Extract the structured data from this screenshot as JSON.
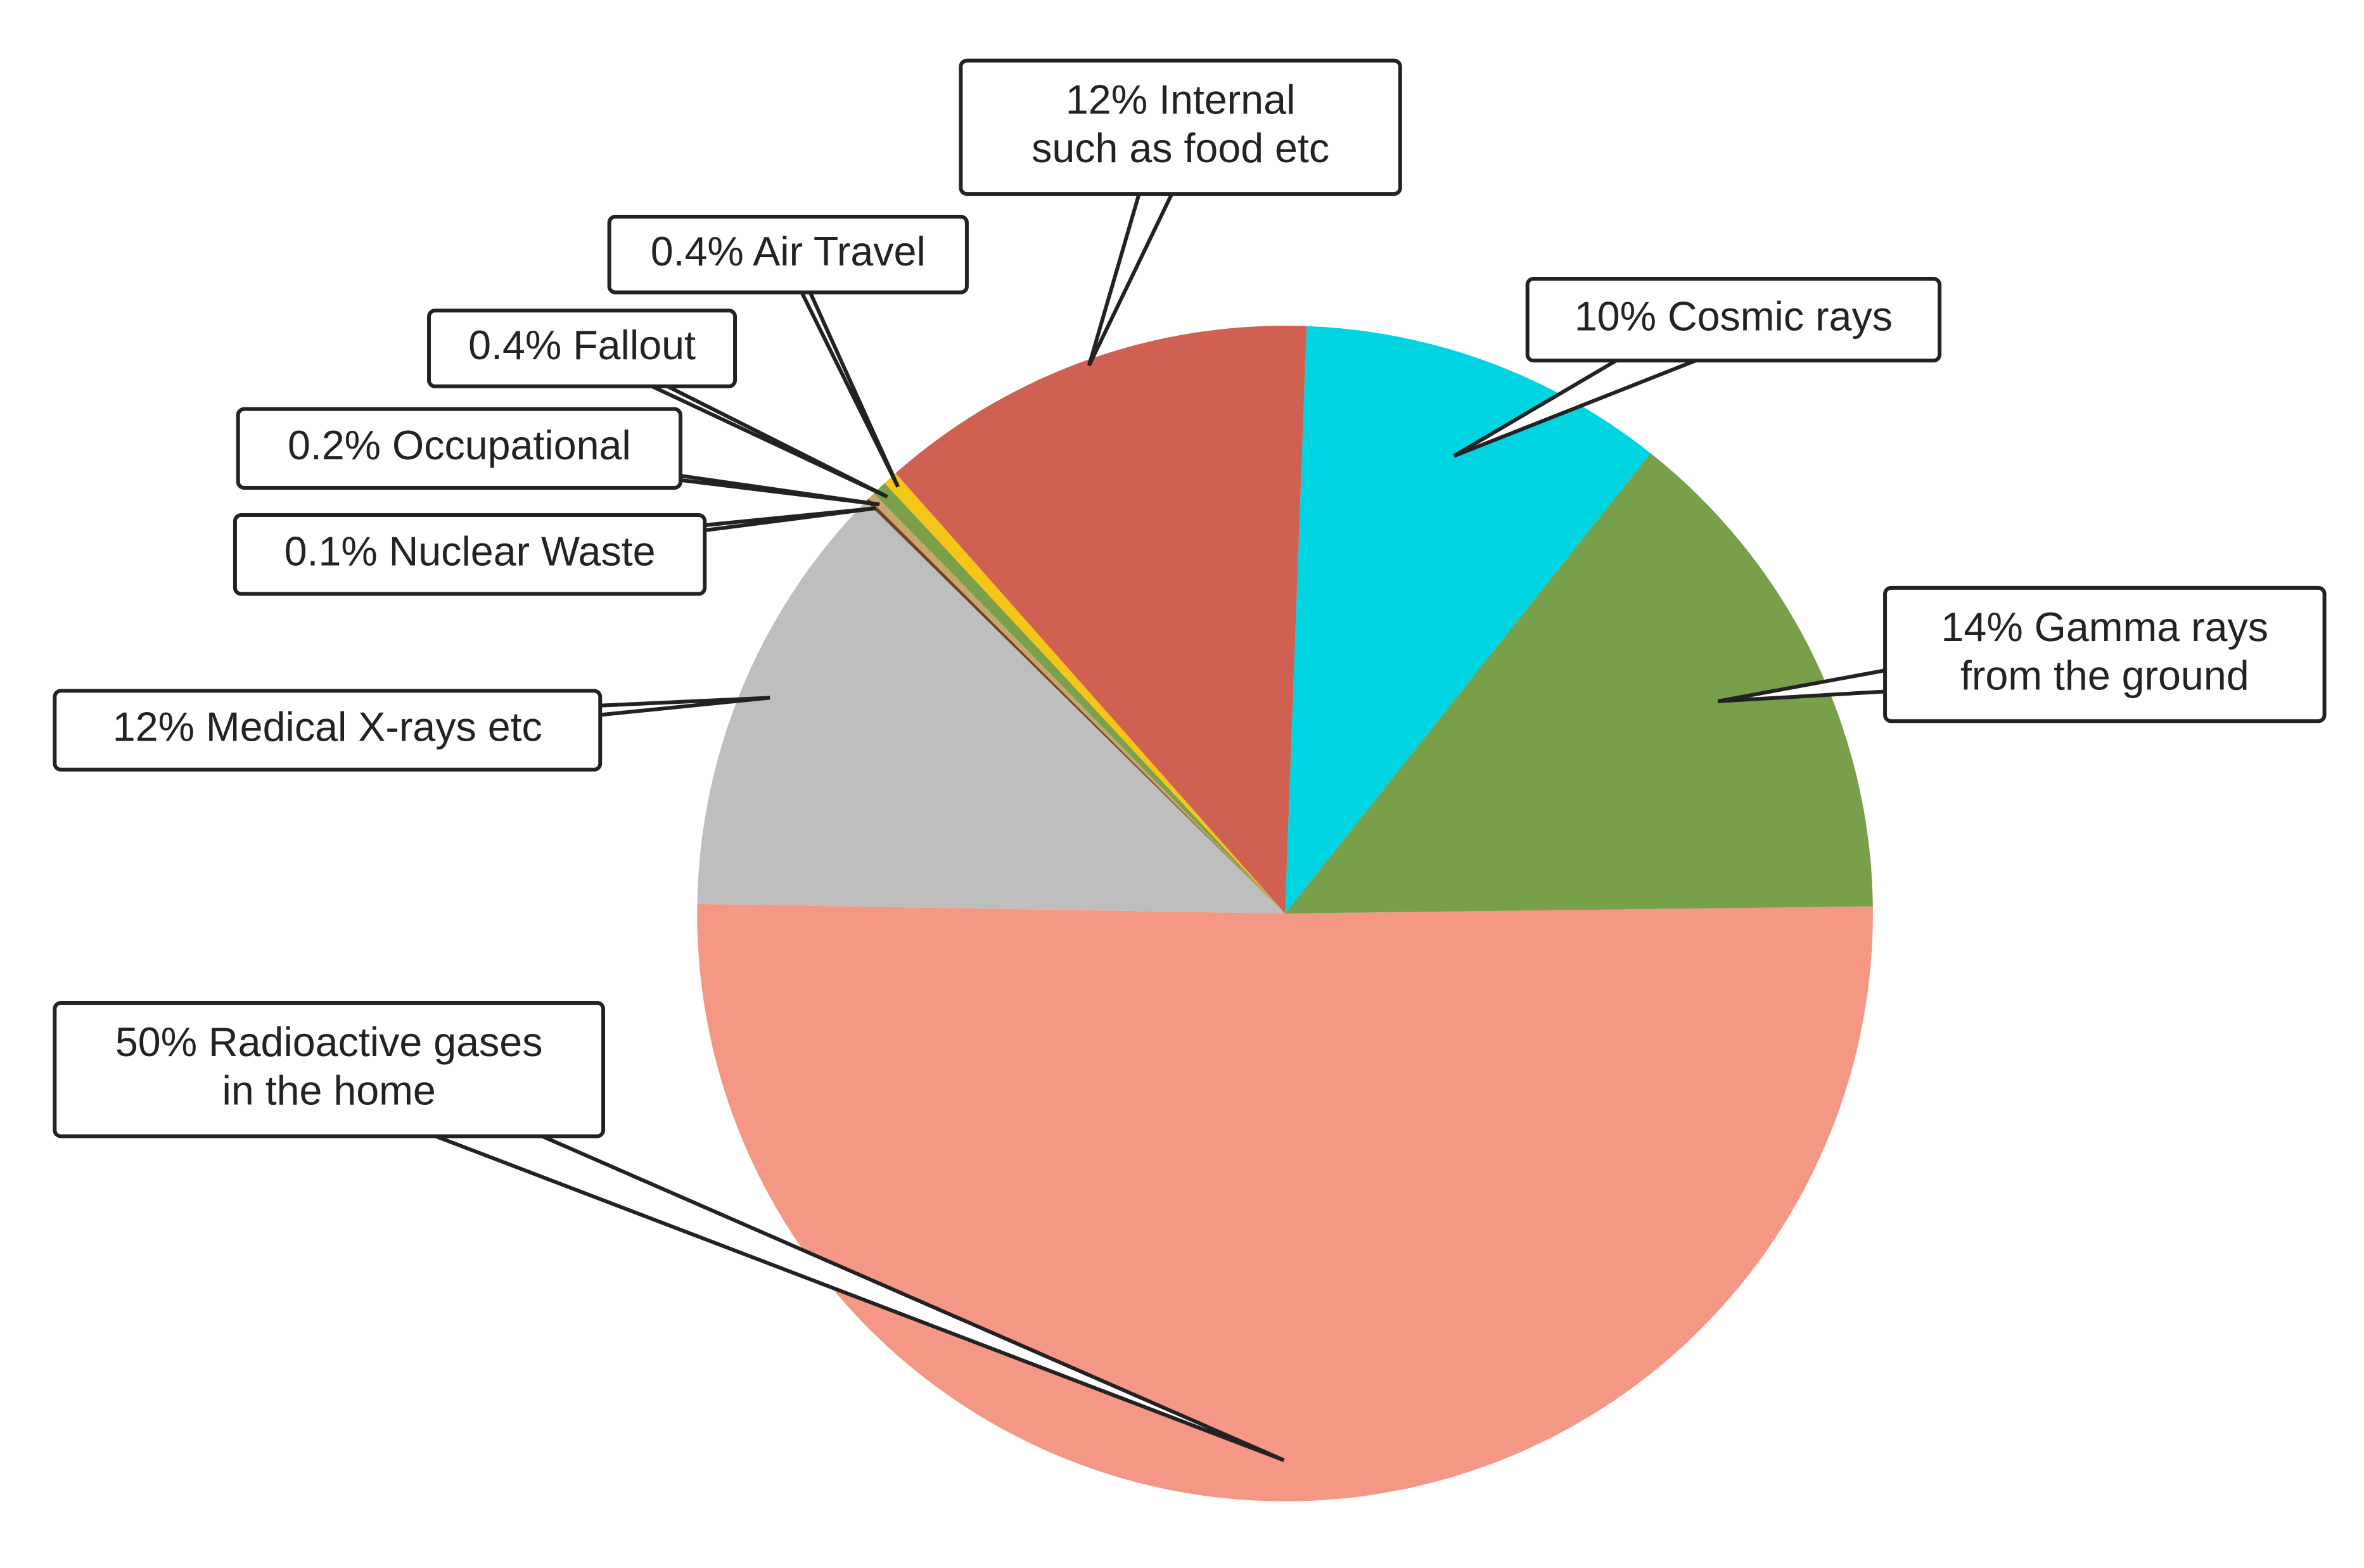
{
  "chart_data": {
    "type": "pie",
    "values": [
      50,
      12,
      0.1,
      0.2,
      0.4,
      0.4,
      12,
      10,
      14
    ],
    "value_labels": [
      [
        "50% Radioactive gases",
        "in the home"
      ],
      [
        "12% Medical X-rays etc"
      ],
      [
        "0.1% Nuclear Waste"
      ],
      [
        "0.2% Occupational"
      ],
      [
        "0.4% Fallout"
      ],
      [
        "0.4% Air Travel"
      ],
      [
        "12% Internal",
        "such as food etc"
      ],
      [
        "10% Cosmic rays"
      ],
      [
        "14% Gamma rays",
        "from the ground"
      ]
    ],
    "colors": [
      "#f59785",
      "#bebebe",
      "#6b4423",
      "#c9a46e",
      "#7aa04a",
      "#f5c518",
      "#d06052",
      "#00d4e0",
      "#78a04a"
    ]
  }
}
